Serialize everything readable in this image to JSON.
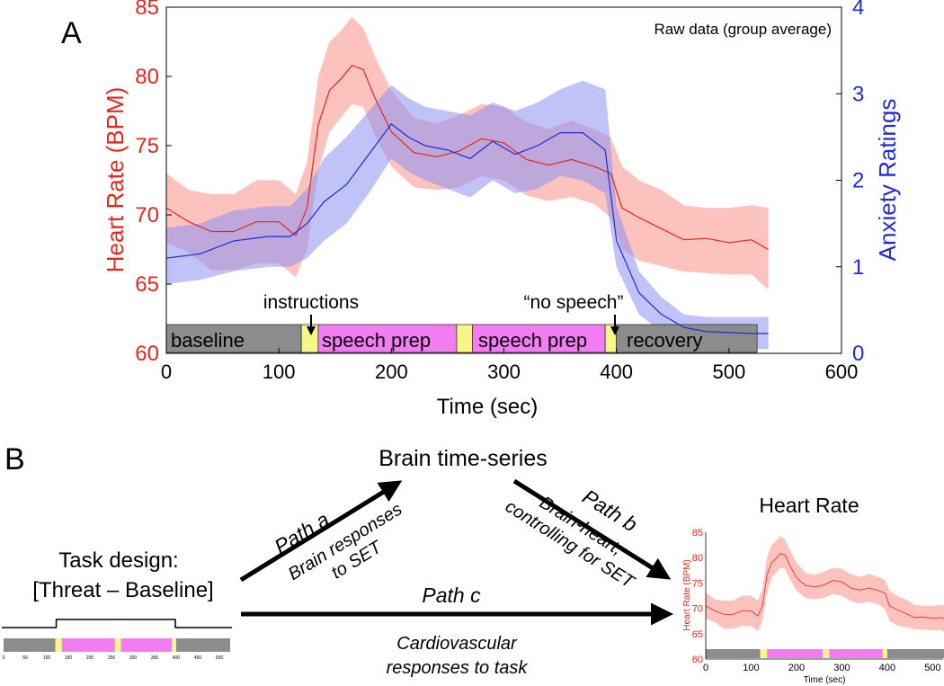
{
  "panel_a": {
    "label": "A",
    "annotation": "Raw data (group average)",
    "event_labels": {
      "instructions": "instructions",
      "no_speech": "“no speech”"
    },
    "phase_labels": [
      "baseline",
      "speech prep",
      "speech prep",
      "recovery"
    ]
  },
  "panel_b": {
    "label": "B",
    "brain_title": "Brain time-series",
    "task_design_line1": "Task design:",
    "task_design_line2": "[Threat – Baseline]",
    "path_a": "Path a",
    "path_a_desc1": "Brain responses",
    "path_a_desc2": "to SET",
    "path_b": "Path b",
    "path_b_desc1": "Brain-heart,",
    "path_b_desc2": "controlling for SET",
    "path_c": "Path c",
    "path_c_desc1": "Cardiovascular",
    "path_c_desc2": "responses to task",
    "heart_rate_title": "Heart Rate",
    "mini_timeline_ticks": [
      "0",
      "50",
      "100",
      "150",
      "200",
      "250",
      "300",
      "350",
      "400",
      "450",
      "500"
    ]
  },
  "colors": {
    "hr": "#e8261c",
    "hr_band": "#f9a8a3",
    "anx": "#1f2ad8",
    "anx_band": "#8a92f2",
    "baseline_gray": "#8c8c8c",
    "speech_pink": "#f27cf2",
    "marker_yellow": "#f7f788"
  },
  "chart_data": [
    {
      "type": "line",
      "title": "",
      "xlabel": "Time (sec)",
      "xlim": [
        0,
        600
      ],
      "xticks": [
        0,
        100,
        200,
        300,
        400,
        500,
        600
      ],
      "y_left": {
        "label": "Heart Rate (BPM)",
        "lim": [
          60,
          85
        ],
        "ticks": [
          60,
          65,
          70,
          75,
          80,
          85
        ]
      },
      "y_right": {
        "label": "Anxiety Ratings",
        "lim": [
          0,
          4
        ],
        "ticks": [
          0,
          1,
          2,
          3,
          4
        ]
      },
      "series": [
        {
          "name": "Heart Rate (BPM)",
          "axis": "left",
          "x": [
            0,
            20,
            40,
            60,
            80,
            100,
            115,
            125,
            135,
            145,
            155,
            165,
            175,
            185,
            200,
            220,
            240,
            260,
            280,
            300,
            320,
            340,
            360,
            380,
            395,
            405,
            420,
            440,
            460,
            480,
            500,
            520,
            535
          ],
          "mean": [
            70.5,
            69.5,
            68.8,
            68.8,
            69.5,
            69.5,
            68.5,
            70.5,
            76.5,
            79,
            79.8,
            80.8,
            80.5,
            78.5,
            76,
            74.5,
            74.2,
            74.6,
            75.5,
            75.2,
            74,
            73.6,
            74,
            73.5,
            73,
            70.5,
            69.8,
            69,
            68.2,
            68.3,
            68,
            68.2,
            67.5
          ],
          "lower": [
            68,
            67.3,
            66,
            66,
            66.5,
            66.5,
            65.5,
            67.5,
            73.2,
            76,
            77,
            78,
            77.8,
            75.8,
            73.5,
            72,
            71.8,
            72,
            72.8,
            72.5,
            71.4,
            71,
            71.3,
            70.8,
            69.8,
            67.5,
            66.7,
            66.3,
            65.9,
            65.8,
            65.7,
            65.7,
            64.6
          ],
          "upper": [
            73,
            71.8,
            71.5,
            71.5,
            72.5,
            72.5,
            71.5,
            73.8,
            80,
            82.5,
            83.3,
            84.3,
            83.5,
            81.5,
            79,
            77,
            76.6,
            77.2,
            78,
            77.8,
            76.7,
            76.2,
            76.8,
            76.2,
            75.6,
            73.5,
            72.5,
            71.8,
            70.7,
            70.5,
            70.5,
            70.7,
            70.5
          ]
        },
        {
          "name": "Anxiety Ratings",
          "axis": "right",
          "x": [
            0,
            30,
            60,
            90,
            110,
            125,
            140,
            160,
            180,
            200,
            215,
            230,
            250,
            270,
            290,
            310,
            330,
            350,
            370,
            390,
            400,
            420,
            440,
            460,
            480,
            500,
            520,
            535
          ],
          "mean": [
            1.1,
            1.15,
            1.3,
            1.35,
            1.35,
            1.5,
            1.75,
            1.95,
            2.3,
            2.65,
            2.5,
            2.4,
            2.35,
            2.25,
            2.45,
            2.3,
            2.4,
            2.55,
            2.55,
            2.35,
            1.3,
            0.7,
            0.45,
            0.3,
            0.25,
            0.24,
            0.23,
            0.23
          ],
          "lower": [
            0.8,
            0.85,
            0.95,
            1.0,
            1.0,
            1.1,
            1.3,
            1.5,
            1.85,
            2.25,
            2.1,
            2.0,
            1.9,
            1.8,
            2.0,
            1.85,
            1.9,
            2.05,
            2.0,
            1.85,
            1.0,
            0.45,
            0.25,
            0.1,
            0.06,
            0.05,
            0.05,
            0.05
          ],
          "upper": [
            1.45,
            1.5,
            1.65,
            1.7,
            1.7,
            1.9,
            2.25,
            2.5,
            2.8,
            3.1,
            2.95,
            2.85,
            2.8,
            2.75,
            2.9,
            2.8,
            2.9,
            3.05,
            3.15,
            3.05,
            1.7,
            0.95,
            0.65,
            0.45,
            0.42,
            0.42,
            0.42,
            0.42
          ]
        }
      ],
      "phases": [
        {
          "name": "baseline",
          "start": 0,
          "end": 120,
          "kind": "gray"
        },
        {
          "name": "instructions",
          "start": 120,
          "end": 135,
          "kind": "yellow"
        },
        {
          "name": "speech prep",
          "start": 135,
          "end": 258,
          "kind": "pink"
        },
        {
          "name": "marker",
          "start": 258,
          "end": 272,
          "kind": "yellow"
        },
        {
          "name": "speech prep",
          "start": 272,
          "end": 390,
          "kind": "pink"
        },
        {
          "name": "no speech",
          "start": 390,
          "end": 400,
          "kind": "yellow"
        },
        {
          "name": "recovery",
          "start": 400,
          "end": 525,
          "kind": "gray"
        }
      ],
      "events": [
        {
          "label": "instructions",
          "x": 130
        },
        {
          "label": "no speech",
          "x": 398
        }
      ]
    },
    {
      "type": "line",
      "title": "Heart Rate",
      "xlabel": "Time (sec)",
      "ylabel": "Heart Rate (BPM)",
      "xlim": [
        0,
        525
      ],
      "ylim": [
        60,
        85
      ],
      "xticks": [
        0,
        100,
        200,
        300,
        400,
        500
      ],
      "yticks": [
        60,
        65,
        70,
        75,
        80,
        85
      ],
      "series_ref": "Heart Rate (BPM)"
    }
  ]
}
